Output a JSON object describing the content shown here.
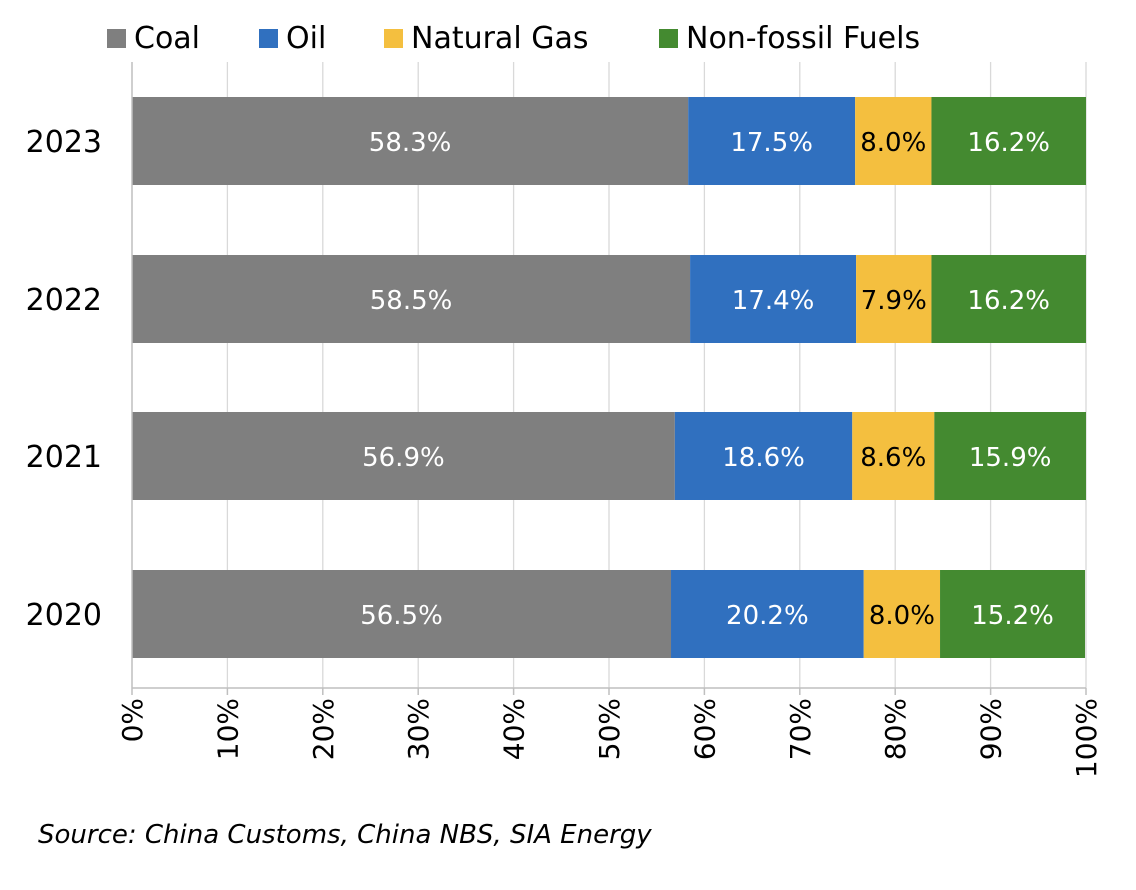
{
  "chart_data": {
    "type": "bar",
    "orientation": "horizontal",
    "stacked": true,
    "categories": [
      "2023",
      "2022",
      "2021",
      "2020"
    ],
    "series": [
      {
        "name": "Coal",
        "color": "#7f7f7f",
        "label_color": "#ffffff",
        "values": [
          58.3,
          58.5,
          56.9,
          56.5
        ],
        "labels": [
          "58.3%",
          "58.5%",
          "56.9%",
          "56.5%"
        ]
      },
      {
        "name": "Oil",
        "color": "#3070bf",
        "label_color": "#ffffff",
        "values": [
          17.5,
          17.4,
          18.6,
          20.2
        ],
        "labels": [
          "17.5%",
          "17.4%",
          "18.6%",
          "20.2%"
        ]
      },
      {
        "name": "Natural Gas",
        "color": "#f4bf3f",
        "label_color": "#000000",
        "values": [
          8.0,
          7.9,
          8.6,
          8.0
        ],
        "labels": [
          "8.0%",
          "7.9%",
          "8.6%",
          "8.0%"
        ]
      },
      {
        "name": "Non-fossil Fuels",
        "color": "#448a30",
        "label_color": "#ffffff",
        "values": [
          16.2,
          16.2,
          15.9,
          15.2
        ],
        "labels": [
          "16.2%",
          "16.2%",
          "15.9%",
          "15.2%"
        ]
      }
    ],
    "xlim": [
      0,
      100
    ],
    "x_ticks": [
      0,
      10,
      20,
      30,
      40,
      50,
      60,
      70,
      80,
      90,
      100
    ],
    "x_tick_labels": [
      "0%",
      "10%",
      "20%",
      "30%",
      "40%",
      "50%",
      "60%",
      "70%",
      "80%",
      "90%",
      "100%"
    ],
    "grid": true,
    "legend_position": "top",
    "title": "",
    "xlabel": "",
    "ylabel": ""
  },
  "source_text": "Source: China Customs, China NBS, SIA Energy"
}
